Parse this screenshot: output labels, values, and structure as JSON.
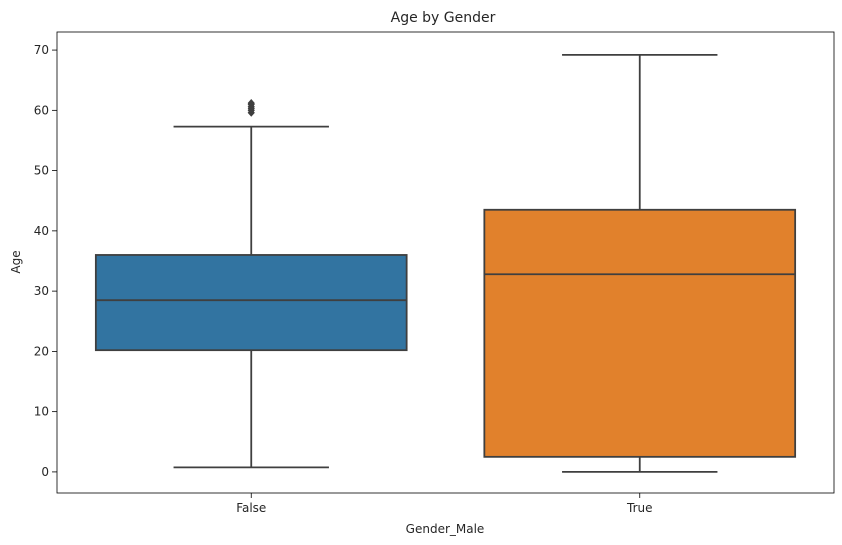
{
  "chart_data": {
    "type": "box",
    "title": "Age by Gender",
    "xlabel": "Gender_Male",
    "ylabel": "Age",
    "categories": [
      "False",
      "True"
    ],
    "ylim": [
      -3.5,
      73
    ],
    "yticks": [
      0,
      10,
      20,
      30,
      40,
      50,
      60,
      70
    ],
    "grid": false,
    "series": [
      {
        "category": "False",
        "color": "#3274a1",
        "whisker_low": 0.75,
        "q1": 20.2,
        "median": 28.5,
        "q3": 36.0,
        "whisker_high": 57.3,
        "outliers": [
          59.6,
          60.0,
          60.3,
          60.6,
          61.0,
          61.2
        ]
      },
      {
        "category": "True",
        "color": "#e1812c",
        "whisker_low": 0.0,
        "q1": 2.5,
        "median": 32.8,
        "q3": 43.5,
        "whisker_high": 69.2,
        "outliers": []
      }
    ]
  }
}
